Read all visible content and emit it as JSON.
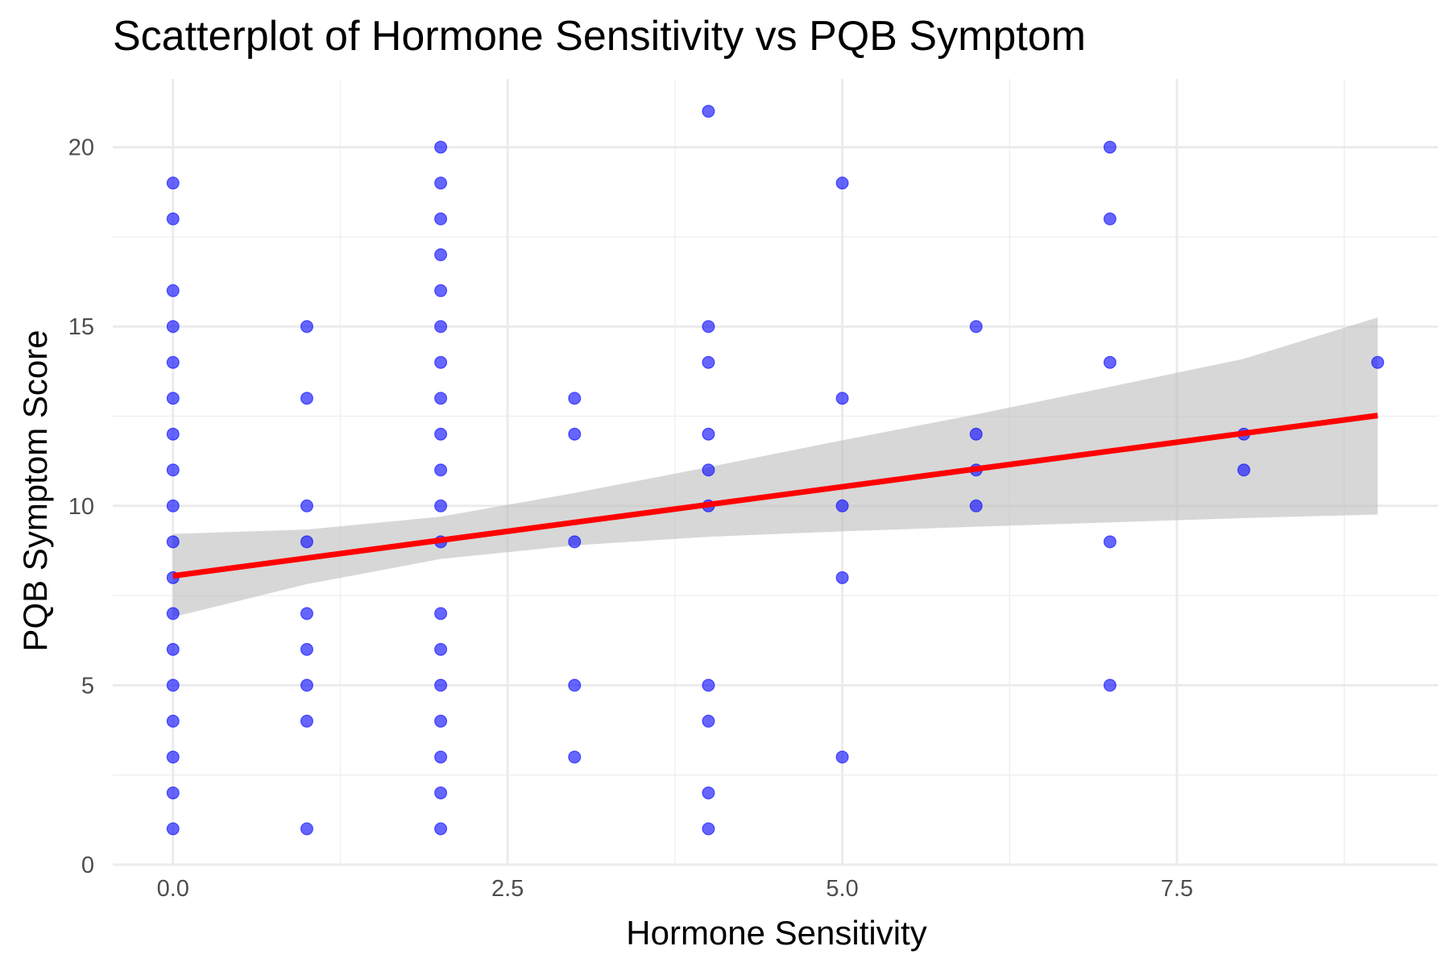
{
  "chart_data": {
    "type": "scatter",
    "title": "Scatterplot of Hormone Sensitivity vs PQB Symptom",
    "xlabel": "Hormone Sensitivity",
    "ylabel": "PQB Symptom Score",
    "xlim": [
      -0.45,
      9.45
    ],
    "ylim": [
      0,
      21.9
    ],
    "x_ticks": [
      0.0,
      2.5,
      5.0,
      7.5
    ],
    "x_tick_labels": [
      "0.0",
      "2.5",
      "5.0",
      "7.5"
    ],
    "y_ticks": [
      0,
      5,
      10,
      15,
      20
    ],
    "y_tick_labels": [
      "0",
      "5",
      "10",
      "15",
      "20"
    ],
    "x_minor_ticks": [
      1.25,
      3.75,
      6.25,
      8.75
    ],
    "y_minor_ticks": [
      2.5,
      7.5,
      12.5,
      17.5
    ],
    "grid": true,
    "legend": "none",
    "colors": {
      "points": "#0000ff",
      "fit_line": "#ff0000",
      "confidence_band": "#bebebe"
    },
    "points": [
      {
        "x": 0,
        "y": 19
      },
      {
        "x": 0,
        "y": 18
      },
      {
        "x": 0,
        "y": 16
      },
      {
        "x": 0,
        "y": 15
      },
      {
        "x": 0,
        "y": 14
      },
      {
        "x": 0,
        "y": 13
      },
      {
        "x": 0,
        "y": 12
      },
      {
        "x": 0,
        "y": 11
      },
      {
        "x": 0,
        "y": 10
      },
      {
        "x": 0,
        "y": 9
      },
      {
        "x": 0,
        "y": 8
      },
      {
        "x": 0,
        "y": 7
      },
      {
        "x": 0,
        "y": 6
      },
      {
        "x": 0,
        "y": 5
      },
      {
        "x": 0,
        "y": 4
      },
      {
        "x": 0,
        "y": 3
      },
      {
        "x": 0,
        "y": 2
      },
      {
        "x": 0,
        "y": 1
      },
      {
        "x": 1,
        "y": 15
      },
      {
        "x": 1,
        "y": 13
      },
      {
        "x": 1,
        "y": 10
      },
      {
        "x": 1,
        "y": 9
      },
      {
        "x": 1,
        "y": 7
      },
      {
        "x": 1,
        "y": 6
      },
      {
        "x": 1,
        "y": 5
      },
      {
        "x": 1,
        "y": 4
      },
      {
        "x": 1,
        "y": 1
      },
      {
        "x": 2,
        "y": 20
      },
      {
        "x": 2,
        "y": 19
      },
      {
        "x": 2,
        "y": 18
      },
      {
        "x": 2,
        "y": 17
      },
      {
        "x": 2,
        "y": 16
      },
      {
        "x": 2,
        "y": 15
      },
      {
        "x": 2,
        "y": 14
      },
      {
        "x": 2,
        "y": 13
      },
      {
        "x": 2,
        "y": 12
      },
      {
        "x": 2,
        "y": 11
      },
      {
        "x": 2,
        "y": 10
      },
      {
        "x": 2,
        "y": 9
      },
      {
        "x": 2,
        "y": 7
      },
      {
        "x": 2,
        "y": 6
      },
      {
        "x": 2,
        "y": 5
      },
      {
        "x": 2,
        "y": 4
      },
      {
        "x": 2,
        "y": 3
      },
      {
        "x": 2,
        "y": 2
      },
      {
        "x": 2,
        "y": 1
      },
      {
        "x": 3,
        "y": 13
      },
      {
        "x": 3,
        "y": 12
      },
      {
        "x": 3,
        "y": 9
      },
      {
        "x": 3,
        "y": 5
      },
      {
        "x": 3,
        "y": 3
      },
      {
        "x": 4,
        "y": 21
      },
      {
        "x": 4,
        "y": 15
      },
      {
        "x": 4,
        "y": 14
      },
      {
        "x": 4,
        "y": 12
      },
      {
        "x": 4,
        "y": 11
      },
      {
        "x": 4,
        "y": 10
      },
      {
        "x": 4,
        "y": 5
      },
      {
        "x": 4,
        "y": 4
      },
      {
        "x": 4,
        "y": 2
      },
      {
        "x": 4,
        "y": 1
      },
      {
        "x": 5,
        "y": 19
      },
      {
        "x": 5,
        "y": 13
      },
      {
        "x": 5,
        "y": 10
      },
      {
        "x": 5,
        "y": 8
      },
      {
        "x": 5,
        "y": 3
      },
      {
        "x": 6,
        "y": 15
      },
      {
        "x": 6,
        "y": 12
      },
      {
        "x": 6,
        "y": 11
      },
      {
        "x": 6,
        "y": 10
      },
      {
        "x": 7,
        "y": 20
      },
      {
        "x": 7,
        "y": 18
      },
      {
        "x": 7,
        "y": 14
      },
      {
        "x": 7,
        "y": 9
      },
      {
        "x": 7,
        "y": 5
      },
      {
        "x": 8,
        "y": 12
      },
      {
        "x": 8,
        "y": 11
      },
      {
        "x": 9,
        "y": 14
      }
    ],
    "fit_line": {
      "x": [
        0,
        9
      ],
      "y": [
        8.05,
        12.52
      ]
    },
    "confidence_band": {
      "x": [
        0,
        1,
        2,
        3,
        4,
        5,
        6,
        7,
        8,
        9
      ],
      "lower": [
        6.9,
        7.82,
        8.52,
        8.9,
        9.14,
        9.29,
        9.42,
        9.54,
        9.66,
        9.76
      ],
      "upper": [
        9.22,
        9.34,
        9.7,
        10.36,
        11.08,
        11.83,
        12.55,
        13.32,
        14.1,
        15.25
      ]
    }
  }
}
